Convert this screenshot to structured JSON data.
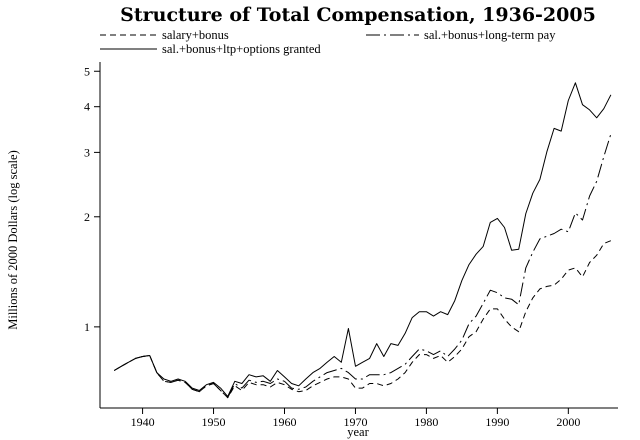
{
  "chart_data": {
    "type": "line",
    "title": "Structure of Total Compensation, 1936-2005",
    "xlabel": "year",
    "ylabel": "Millions of 2000 Dollars (log scale)",
    "yscale": "log",
    "xlim": [
      1934,
      2007
    ],
    "ylim": [
      0.6,
      5.3
    ],
    "xticks": [
      1940,
      1950,
      1960,
      1970,
      1980,
      1990,
      2000
    ],
    "xtick_labels": [
      "1940",
      "1950",
      "1960",
      "1970",
      "1980",
      "1990",
      "2000"
    ],
    "yticks": [
      1,
      2,
      3,
      4,
      5
    ],
    "ytick_labels": [
      "1",
      "2",
      "3",
      "4",
      "5"
    ],
    "legend_position": "top",
    "series": [
      {
        "name": "salary+bonus",
        "dash": "6,4",
        "values": [
          [
            1936,
            0.76
          ],
          [
            1937,
            0.78
          ],
          [
            1938,
            0.8
          ],
          [
            1939,
            0.82
          ],
          [
            1940,
            0.83
          ],
          [
            1941,
            0.835
          ],
          [
            1942,
            0.75
          ],
          [
            1943,
            0.71
          ],
          [
            1944,
            0.705
          ],
          [
            1945,
            0.715
          ],
          [
            1946,
            0.705
          ],
          [
            1947,
            0.675
          ],
          [
            1948,
            0.665
          ],
          [
            1949,
            0.69
          ],
          [
            1950,
            0.7
          ],
          [
            1951,
            0.67
          ],
          [
            1952,
            0.64
          ],
          [
            1953,
            0.69
          ],
          [
            1954,
            0.67
          ],
          [
            1955,
            0.705
          ],
          [
            1956,
            0.695
          ],
          [
            1957,
            0.695
          ],
          [
            1958,
            0.685
          ],
          [
            1959,
            0.705
          ],
          [
            1960,
            0.695
          ],
          [
            1961,
            0.675
          ],
          [
            1962,
            0.665
          ],
          [
            1963,
            0.67
          ],
          [
            1964,
            0.69
          ],
          [
            1965,
            0.705
          ],
          [
            1966,
            0.72
          ],
          [
            1967,
            0.73
          ],
          [
            1968,
            0.73
          ],
          [
            1969,
            0.72
          ],
          [
            1970,
            0.68
          ],
          [
            1971,
            0.68
          ],
          [
            1972,
            0.7
          ],
          [
            1973,
            0.7
          ],
          [
            1974,
            0.69
          ],
          [
            1975,
            0.7
          ],
          [
            1976,
            0.72
          ],
          [
            1977,
            0.75
          ],
          [
            1978,
            0.8
          ],
          [
            1979,
            0.84
          ],
          [
            1980,
            0.84
          ],
          [
            1981,
            0.82
          ],
          [
            1982,
            0.835
          ],
          [
            1983,
            0.8
          ],
          [
            1984,
            0.83
          ],
          [
            1985,
            0.87
          ],
          [
            1986,
            0.94
          ],
          [
            1987,
            0.97
          ],
          [
            1988,
            1.05
          ],
          [
            1989,
            1.12
          ],
          [
            1990,
            1.12
          ],
          [
            1991,
            1.05
          ],
          [
            1992,
            1.0
          ],
          [
            1993,
            0.97
          ],
          [
            1994,
            1.1
          ],
          [
            1995,
            1.2
          ],
          [
            1996,
            1.27
          ],
          [
            1997,
            1.29
          ],
          [
            1998,
            1.3
          ],
          [
            1999,
            1.35
          ],
          [
            2000,
            1.43
          ],
          [
            2001,
            1.45
          ],
          [
            2002,
            1.37
          ],
          [
            2003,
            1.5
          ],
          [
            2004,
            1.57
          ],
          [
            2005,
            1.69
          ],
          [
            2006,
            1.72
          ]
        ]
      },
      {
        "name": "sal.+bonus+long-term pay",
        "dash": "14,4,2,4",
        "values": [
          [
            1936,
            0.76
          ],
          [
            1937,
            0.78
          ],
          [
            1938,
            0.8
          ],
          [
            1939,
            0.82
          ],
          [
            1940,
            0.83
          ],
          [
            1941,
            0.835
          ],
          [
            1942,
            0.75
          ],
          [
            1943,
            0.71
          ],
          [
            1944,
            0.705
          ],
          [
            1945,
            0.715
          ],
          [
            1946,
            0.705
          ],
          [
            1947,
            0.675
          ],
          [
            1948,
            0.665
          ],
          [
            1949,
            0.69
          ],
          [
            1950,
            0.7
          ],
          [
            1951,
            0.67
          ],
          [
            1952,
            0.64
          ],
          [
            1953,
            0.7
          ],
          [
            1954,
            0.68
          ],
          [
            1955,
            0.715
          ],
          [
            1956,
            0.705
          ],
          [
            1957,
            0.71
          ],
          [
            1958,
            0.7
          ],
          [
            1959,
            0.72
          ],
          [
            1960,
            0.71
          ],
          [
            1961,
            0.68
          ],
          [
            1962,
            0.675
          ],
          [
            1963,
            0.685
          ],
          [
            1964,
            0.71
          ],
          [
            1965,
            0.73
          ],
          [
            1966,
            0.75
          ],
          [
            1967,
            0.76
          ],
          [
            1968,
            0.77
          ],
          [
            1969,
            0.75
          ],
          [
            1970,
            0.72
          ],
          [
            1971,
            0.72
          ],
          [
            1972,
            0.74
          ],
          [
            1973,
            0.74
          ],
          [
            1974,
            0.74
          ],
          [
            1975,
            0.75
          ],
          [
            1976,
            0.77
          ],
          [
            1977,
            0.79
          ],
          [
            1978,
            0.83
          ],
          [
            1979,
            0.87
          ],
          [
            1980,
            0.86
          ],
          [
            1981,
            0.84
          ],
          [
            1982,
            0.86
          ],
          [
            1983,
            0.83
          ],
          [
            1984,
            0.87
          ],
          [
            1985,
            0.92
          ],
          [
            1986,
            1.02
          ],
          [
            1987,
            1.07
          ],
          [
            1988,
            1.16
          ],
          [
            1989,
            1.26
          ],
          [
            1990,
            1.24
          ],
          [
            1991,
            1.2
          ],
          [
            1992,
            1.19
          ],
          [
            1993,
            1.15
          ],
          [
            1994,
            1.45
          ],
          [
            1995,
            1.6
          ],
          [
            1996,
            1.74
          ],
          [
            1997,
            1.77
          ],
          [
            1998,
            1.8
          ],
          [
            1999,
            1.85
          ],
          [
            2000,
            1.82
          ],
          [
            2001,
            2.05
          ],
          [
            2002,
            1.96
          ],
          [
            2003,
            2.28
          ],
          [
            2004,
            2.5
          ],
          [
            2005,
            2.92
          ],
          [
            2006,
            3.37
          ]
        ]
      },
      {
        "name": "sal.+bonus+ltp+options granted",
        "dash": "",
        "values": [
          [
            1936,
            0.76
          ],
          [
            1937,
            0.78
          ],
          [
            1938,
            0.8
          ],
          [
            1939,
            0.82
          ],
          [
            1940,
            0.83
          ],
          [
            1941,
            0.835
          ],
          [
            1942,
            0.75
          ],
          [
            1943,
            0.72
          ],
          [
            1944,
            0.71
          ],
          [
            1945,
            0.72
          ],
          [
            1946,
            0.71
          ],
          [
            1947,
            0.68
          ],
          [
            1948,
            0.67
          ],
          [
            1949,
            0.695
          ],
          [
            1950,
            0.705
          ],
          [
            1951,
            0.68
          ],
          [
            1952,
            0.645
          ],
          [
            1953,
            0.71
          ],
          [
            1954,
            0.7
          ],
          [
            1955,
            0.74
          ],
          [
            1956,
            0.73
          ],
          [
            1957,
            0.735
          ],
          [
            1958,
            0.71
          ],
          [
            1959,
            0.76
          ],
          [
            1960,
            0.73
          ],
          [
            1961,
            0.7
          ],
          [
            1962,
            0.69
          ],
          [
            1963,
            0.72
          ],
          [
            1964,
            0.75
          ],
          [
            1965,
            0.77
          ],
          [
            1966,
            0.8
          ],
          [
            1967,
            0.83
          ],
          [
            1968,
            0.8
          ],
          [
            1969,
            0.99
          ],
          [
            1970,
            0.78
          ],
          [
            1971,
            0.8
          ],
          [
            1972,
            0.82
          ],
          [
            1973,
            0.9
          ],
          [
            1974,
            0.83
          ],
          [
            1975,
            0.9
          ],
          [
            1976,
            0.89
          ],
          [
            1977,
            0.96
          ],
          [
            1978,
            1.06
          ],
          [
            1979,
            1.1
          ],
          [
            1980,
            1.1
          ],
          [
            1981,
            1.07
          ],
          [
            1982,
            1.1
          ],
          [
            1983,
            1.08
          ],
          [
            1984,
            1.18
          ],
          [
            1985,
            1.34
          ],
          [
            1986,
            1.48
          ],
          [
            1987,
            1.58
          ],
          [
            1988,
            1.66
          ],
          [
            1989,
            1.93
          ],
          [
            1990,
            1.98
          ],
          [
            1991,
            1.87
          ],
          [
            1992,
            1.62
          ],
          [
            1993,
            1.63
          ],
          [
            1994,
            2.04
          ],
          [
            1995,
            2.32
          ],
          [
            1996,
            2.53
          ],
          [
            1997,
            3.02
          ],
          [
            1998,
            3.49
          ],
          [
            1999,
            3.43
          ],
          [
            2000,
            4.16
          ],
          [
            2001,
            4.65
          ],
          [
            2002,
            4.05
          ],
          [
            2003,
            3.92
          ],
          [
            2004,
            3.73
          ],
          [
            2005,
            3.95
          ],
          [
            2006,
            4.31
          ]
        ]
      }
    ]
  }
}
